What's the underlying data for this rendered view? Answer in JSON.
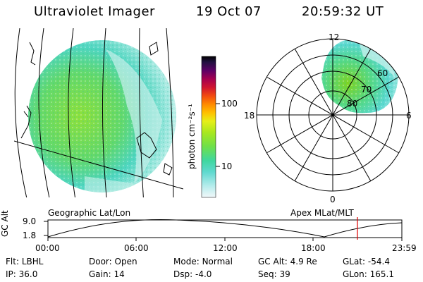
{
  "header": {
    "title": "Ultraviolet Imager",
    "date": "19 Oct 07",
    "time": "20:59:32 UT"
  },
  "panels": {
    "left_label": "Geographic Lat/Lon",
    "right_label": "Apex MLat/MLT"
  },
  "colorbar": {
    "unit_label": "photon cm⁻²s⁻¹",
    "ticks": [
      "100",
      "10"
    ]
  },
  "polar": {
    "mlt_labels": {
      "top": "12",
      "left": "18",
      "right": "6",
      "bottom": "0"
    },
    "lat_labels": [
      "60",
      "70",
      "80"
    ]
  },
  "altitude_plot": {
    "ylabel": "GC Alt",
    "y_ticks": [
      "9.0",
      "1.8"
    ],
    "x_ticks": [
      "00:00",
      "06:00",
      "12:00",
      "18:00",
      "23:59"
    ]
  },
  "info": {
    "row1": [
      {
        "key": "Flt:",
        "val": "LBHL"
      },
      {
        "key": "Door:",
        "val": "Open"
      },
      {
        "key": "Mode:",
        "val": "Normal"
      },
      {
        "key": "GC Alt:",
        "val": "4.9 Re"
      },
      {
        "key": "GLat:",
        "val": "-54.4"
      }
    ],
    "row2": [
      {
        "key": "IP:",
        "val": "36.0"
      },
      {
        "key": "Gain:",
        "val": "14"
      },
      {
        "key": "Dsp:",
        "val": "-4.0"
      },
      {
        "key": "Seq:",
        "val": "39"
      },
      {
        "key": "GLon:",
        "val": "165.1"
      }
    ]
  },
  "colors": {
    "aurora_green": "#7ed321",
    "aurora_cyan": "#4fd8c0",
    "aurora_pale": "#bff0e8",
    "marker_red": "#e00000"
  }
}
